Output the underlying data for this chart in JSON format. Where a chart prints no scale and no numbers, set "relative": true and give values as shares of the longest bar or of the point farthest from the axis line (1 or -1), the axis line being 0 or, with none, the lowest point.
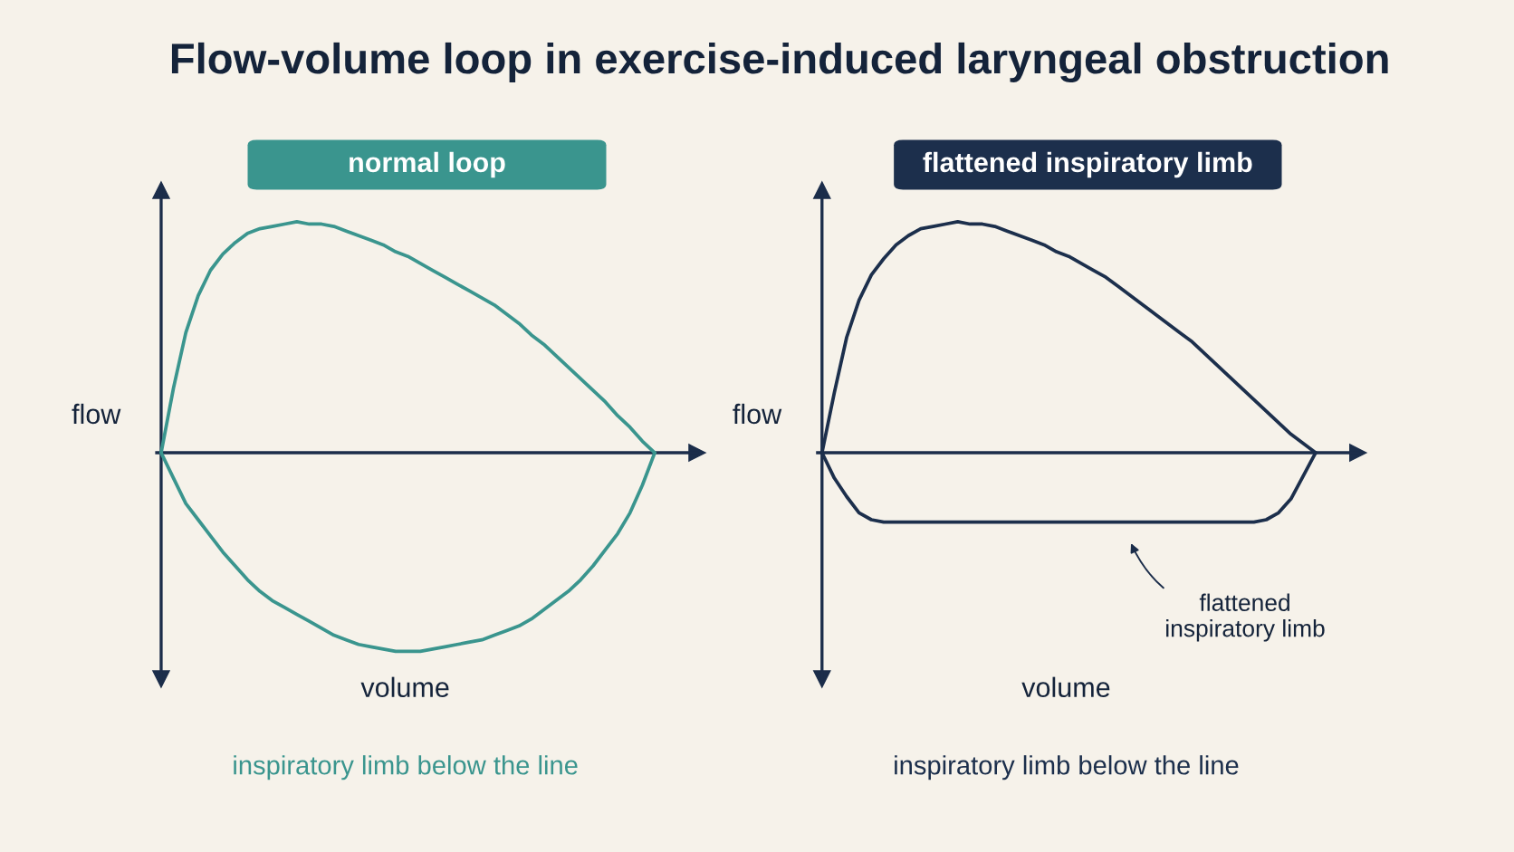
{
  "chart_data": [
    {
      "type": "line",
      "title": "Flow-volume loop in exercise-induced laryngeal obstruction",
      "subtitle": "normal loop",
      "xlabel": "volume",
      "ylabel": "flow",
      "relative": true,
      "categories": [
        null,
        null,
        null,
        null,
        null,
        null,
        null,
        null,
        null,
        null,
        null,
        null,
        null,
        null,
        null,
        null,
        null,
        null,
        null,
        null,
        null,
        null,
        null,
        null,
        null,
        null,
        null,
        null,
        null,
        null,
        null,
        null,
        null,
        null,
        null,
        null,
        null,
        null,
        null,
        null,
        null
      ],
      "series": [
        {
          "color": "#3a958e",
          "values": [
            0,
            0.28,
            0.52,
            0.68,
            0.79,
            0.86,
            0.91,
            0.95,
            0.97,
            0.98,
            0.99,
            1,
            0.99,
            0.99,
            0.98,
            0.96,
            0.94,
            0.92,
            0.9,
            0.87,
            0.85,
            0.82,
            0.79,
            0.76,
            0.73,
            0.7,
            0.67,
            0.64,
            0.6,
            0.56,
            0.51,
            0.47,
            0.42,
            0.37,
            0.32,
            0.27,
            0.22,
            0.16,
            0.11,
            0.05,
            0
          ]
        },
        {
          "color": "#3a958e",
          "values": [
            0,
            -0.11,
            -0.22,
            -0.29,
            -0.36,
            -0.43,
            -0.49,
            -0.55,
            -0.6,
            -0.64,
            -0.67,
            -0.7,
            -0.73,
            -0.76,
            -0.79,
            -0.81,
            -0.83,
            -0.84,
            -0.85,
            -0.86,
            -0.86,
            -0.86,
            -0.85,
            -0.84,
            -0.83,
            -0.82,
            -0.81,
            -0.79,
            -0.77,
            -0.75,
            -0.72,
            -0.68,
            -0.64,
            -0.6,
            -0.55,
            -0.49,
            -0.42,
            -0.35,
            -0.26,
            -0.14,
            0
          ]
        }
      ],
      "annotations": [
        "inspiratory limb below the line"
      ]
    },
    {
      "type": "line",
      "subtitle": "flattened inspiratory limb",
      "xlabel": "volume",
      "ylabel": "flow",
      "relative": true,
      "categories": [
        null,
        null,
        null,
        null,
        null,
        null,
        null,
        null,
        null,
        null,
        null,
        null,
        null,
        null,
        null,
        null,
        null,
        null,
        null,
        null,
        null,
        null,
        null,
        null,
        null,
        null,
        null,
        null,
        null,
        null,
        null,
        null,
        null,
        null,
        null,
        null,
        null,
        null,
        null,
        null,
        null
      ],
      "series": [
        {
          "color": "#1c2f4c",
          "values": [
            0,
            0.26,
            0.5,
            0.66,
            0.77,
            0.84,
            0.9,
            0.94,
            0.97,
            0.98,
            0.99,
            1,
            0.99,
            0.99,
            0.98,
            0.96,
            0.94,
            0.92,
            0.9,
            0.87,
            0.85,
            0.82,
            0.79,
            0.76,
            0.72,
            0.68,
            0.64,
            0.6,
            0.56,
            0.52,
            0.48,
            0.43,
            0.38,
            0.33,
            0.28,
            0.23,
            0.18,
            0.13,
            0.08,
            0.04,
            0
          ]
        },
        {
          "color": "#1c2f4c",
          "values": [
            0,
            -0.11,
            -0.19,
            -0.26,
            -0.29,
            -0.3,
            -0.3,
            -0.3,
            -0.3,
            -0.3,
            -0.3,
            -0.3,
            -0.3,
            -0.3,
            -0.3,
            -0.3,
            -0.3,
            -0.3,
            -0.3,
            -0.3,
            -0.3,
            -0.3,
            -0.3,
            -0.3,
            -0.3,
            -0.3,
            -0.3,
            -0.3,
            -0.3,
            -0.3,
            -0.3,
            -0.3,
            -0.3,
            -0.3,
            -0.3,
            -0.3,
            -0.29,
            -0.26,
            -0.2,
            -0.1,
            0
          ]
        }
      ],
      "annotations": [
        {
          "text": "flattened\ninspiratory limb",
          "y": -0.3
        },
        "inspiratory limb below the line"
      ]
    }
  ]
}
